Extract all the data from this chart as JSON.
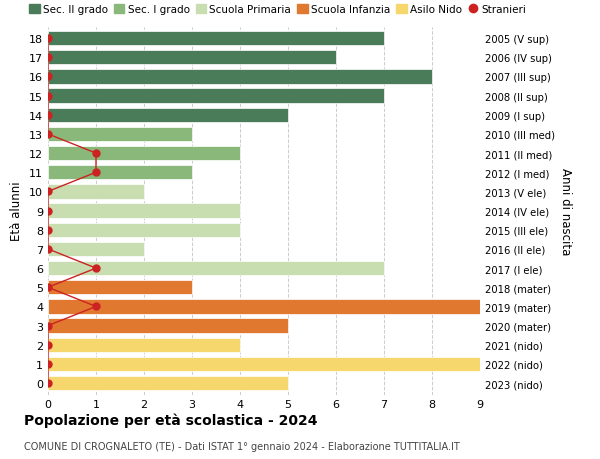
{
  "ages": [
    18,
    17,
    16,
    15,
    14,
    13,
    12,
    11,
    10,
    9,
    8,
    7,
    6,
    5,
    4,
    3,
    2,
    1,
    0
  ],
  "right_labels": [
    "2005 (V sup)",
    "2006 (IV sup)",
    "2007 (III sup)",
    "2008 (II sup)",
    "2009 (I sup)",
    "2010 (III med)",
    "2011 (II med)",
    "2012 (I med)",
    "2013 (V ele)",
    "2014 (IV ele)",
    "2015 (III ele)",
    "2016 (II ele)",
    "2017 (I ele)",
    "2018 (mater)",
    "2019 (mater)",
    "2020 (mater)",
    "2021 (nido)",
    "2022 (nido)",
    "2023 (nido)"
  ],
  "bar_values": [
    7,
    6,
    8,
    7,
    5,
    3,
    4,
    3,
    2,
    4,
    4,
    2,
    7,
    3,
    9,
    5,
    4,
    9,
    5
  ],
  "bar_colors": [
    "#4a7c59",
    "#4a7c59",
    "#4a7c59",
    "#4a7c59",
    "#4a7c59",
    "#8ab87a",
    "#8ab87a",
    "#8ab87a",
    "#c8ddb0",
    "#c8ddb0",
    "#c8ddb0",
    "#c8ddb0",
    "#c8ddb0",
    "#e07830",
    "#e07830",
    "#e07830",
    "#f5d76e",
    "#f5d76e",
    "#f5d76e"
  ],
  "stranieri_values": [
    0,
    0,
    0,
    0,
    0,
    0,
    1,
    1,
    0,
    0,
    0,
    0,
    1,
    0,
    1,
    0,
    0,
    0,
    0
  ],
  "title": "Popolazione per età scolastica - 2024",
  "subtitle": "COMUNE DI CROGNALETO (TE) - Dati ISTAT 1° gennaio 2024 - Elaborazione TUTTITALIA.IT",
  "ylabel": "Età alunni",
  "right_ylabel": "Anni di nascita",
  "xlim": [
    0,
    9
  ],
  "xticks": [
    0,
    1,
    2,
    3,
    4,
    5,
    6,
    7,
    8,
    9
  ],
  "legend_labels": [
    "Sec. II grado",
    "Sec. I grado",
    "Scuola Primaria",
    "Scuola Infanzia",
    "Asilo Nido",
    "Stranieri"
  ],
  "legend_colors": [
    "#4a7c59",
    "#8ab87a",
    "#c8ddb0",
    "#e07830",
    "#f5d76e",
    "#cc2222"
  ],
  "bg_color": "#ffffff",
  "grid_color": "#cccccc",
  "bar_height": 0.75,
  "stranieri_color": "#cc2222"
}
